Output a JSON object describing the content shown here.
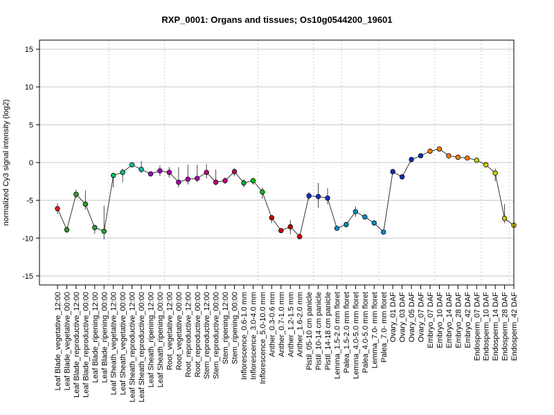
{
  "chart_data": {
    "type": "line",
    "title": "RXP_0001: Organs and tissues; Os10g0544200_19601",
    "xlabel": "",
    "ylabel": "normalized Cy3 signal intensity (log2)",
    "ylim": [
      -16.2,
      16.2
    ],
    "yticks": [
      -15,
      -10,
      -5,
      0,
      5,
      10,
      15
    ],
    "grid": "horizontal lines at y ticks; dotted vertical lines between tissue groups",
    "group_boundaries_after_index": [
      5,
      11,
      21,
      27,
      30,
      34,
      40,
      45,
      48,
      53,
      57
    ],
    "categories": [
      "Leaf Blade_vegetative_12:00",
      "Leaf Blade_vegetative_00:00",
      "Leaf Blade_reproductive_12:00",
      "Leaf Blade_reproductive_00:00",
      "Leaf Blade_ripening_12:00",
      "Leaf Blade_ripening_00:00",
      "Leaf Sheath_vegetative_12:00",
      "Leaf Sheath_vegetative_00:00",
      "Leaf Sheath_reproductive_12:00",
      "Leaf Sheath_reproductive_00:00",
      "Leaf Sheath_ripening_12:00",
      "Leaf Sheath_ripening_00:00",
      "Root_vegetative_12:00",
      "Root_vegetative_00:00",
      "Root_reproductive_12:00",
      "Root_reproductive_00:00",
      "Stem_reproductive_12:00",
      "Stem_reproductive_00:00",
      "Stem_ripening_12:00",
      "Stem_ripening_00:00",
      "Inflorescence_0.6-1.0 mm",
      "Inflorescence_3.0-4.0 mm",
      "Inflorescence_5.0-10.0 mm",
      "Anther_0.3-0.6 mm",
      "Anther_0.7-1.0 mm",
      "Anther_1.2-1.5 mm",
      "Anther_1.6-2.0 mm",
      "Pistil_05-10 cm panicle",
      "Pistil_10-14 cm panicle",
      "Pistil_14-18 cm panicle",
      "Lemma_1.5-2.0 mm floret",
      "Palea_1.5-2.0 mm floret",
      "Lemma_4.0-5.0 mm floret",
      "Palea_4.0-5.0 mm floret",
      "Lemma_7.0- mm floret",
      "Palea_7.0- mm floret",
      "Ovary_01 DAF",
      "Ovary_03 DAF",
      "Ovary_05 DAF",
      "Ovary_07 DAF",
      "Embryo_07 DAF",
      "Embryo_10 DAF",
      "Embryo_14 DAF",
      "Embryo_28 DAF",
      "Embryo_42 DAF",
      "Endosperm_07 DAF",
      "Endosperm_10 DAF",
      "Endosperm_14 DAF",
      "Endosperm_28 DAF",
      "Endosperm_42 DAF"
    ],
    "values": [
      -6.1,
      -8.9,
      -4.2,
      -5.5,
      -8.6,
      -9.1,
      -1.7,
      -1.3,
      -0.3,
      -0.9,
      -1.5,
      -1.1,
      -1.3,
      -2.6,
      -2.2,
      -2.1,
      -1.3,
      -2.6,
      -2.4,
      -1.2,
      -2.7,
      -2.4,
      -3.9,
      -7.3,
      -9.0,
      -8.5,
      -9.8,
      -4.4,
      -4.5,
      -4.7,
      -8.7,
      -8.2,
      -6.5,
      -7.2,
      -8.0,
      -9.2,
      -1.2,
      -1.9,
      0.4,
      0.9,
      1.5,
      1.8,
      0.9,
      0.7,
      0.6,
      0.3,
      -0.3,
      -1.4,
      -7.4,
      -8.3
    ],
    "errors": [
      [
        -6.8,
        -5.4
      ],
      [
        -9.3,
        -8.5
      ],
      [
        -4.7,
        -3.6
      ],
      [
        -6.2,
        -3.7
      ],
      [
        -9.4,
        -8.5
      ],
      [
        -10.2,
        -5.7
      ],
      [
        -3.3,
        -1.4
      ],
      [
        -2.6,
        -0.8
      ],
      [
        -0.6,
        0.0
      ],
      [
        -1.4,
        0.2
      ],
      [
        -1.6,
        -1.2
      ],
      [
        -1.8,
        -0.4
      ],
      [
        -2.0,
        -0.6
      ],
      [
        -3.3,
        -0.6
      ],
      [
        -2.9,
        -0.3
      ],
      [
        -2.6,
        -0.3
      ],
      [
        -2.1,
        -0.2
      ],
      [
        -3.0,
        -0.9
      ],
      [
        -2.8,
        -2.0
      ],
      [
        -1.8,
        -0.8
      ],
      [
        -3.3,
        -2.2
      ],
      [
        -2.9,
        -2.1
      ],
      [
        -4.8,
        -3.3
      ],
      [
        -8.0,
        -7.0
      ],
      [
        -9.3,
        -8.7
      ],
      [
        -9.5,
        -7.6
      ],
      [
        -10.0,
        -9.4
      ],
      [
        -4.9,
        -3.9
      ],
      [
        -6.0,
        -2.7
      ],
      [
        -5.5,
        -3.4
      ],
      [
        -9.0,
        -8.4
      ],
      [
        -8.6,
        -7.9
      ],
      [
        -7.2,
        -5.8
      ],
      [
        -7.4,
        -6.9
      ],
      [
        -8.3,
        -7.6
      ],
      [
        -9.5,
        -8.9
      ],
      [
        -1.5,
        -0.9
      ],
      [
        -2.2,
        -1.6
      ],
      [
        0.2,
        0.6
      ],
      [
        0.6,
        1.2
      ],
      [
        1.2,
        1.8
      ],
      [
        1.6,
        2.0
      ],
      [
        0.5,
        1.2
      ],
      [
        0.4,
        1.0
      ],
      [
        0.3,
        0.9
      ],
      [
        0.0,
        0.6
      ],
      [
        -0.6,
        0.1
      ],
      [
        -2.5,
        -0.8
      ],
      [
        -8.0,
        -5.5
      ],
      [
        -8.5,
        -8.0
      ]
    ],
    "colors": [
      "#e41a1c",
      "#2ca02c",
      "#2ca02c",
      "#2ca02c",
      "#2ca02c",
      "#2ca02c",
      "#00c060",
      "#00c080",
      "#00c0a0",
      "#00c0a0",
      "#a000c0",
      "#a000c0",
      "#b000b0",
      "#b000b0",
      "#b000b0",
      "#b000b0",
      "#c00080",
      "#c00080",
      "#c00080",
      "#c00060",
      "#00b030",
      "#00c000",
      "#00c000",
      "#d00000",
      "#d00000",
      "#d00000",
      "#d00000",
      "#1030d0",
      "#1030d0",
      "#1030d0",
      "#0090c0",
      "#0090c0",
      "#0090c0",
      "#0090c0",
      "#0090c0",
      "#0090c0",
      "#0030c0",
      "#0030c0",
      "#0030c0",
      "#0030c0",
      "#ff8000",
      "#ff8000",
      "#ff8000",
      "#ff8000",
      "#ff8000",
      "#d0d000",
      "#d0d000",
      "#d0d000",
      "#d0d000",
      "#d0d000"
    ]
  }
}
